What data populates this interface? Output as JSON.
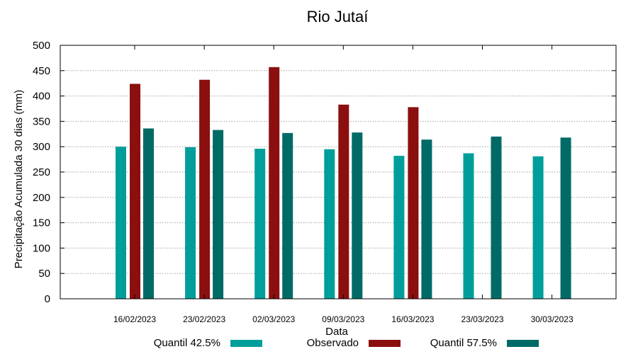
{
  "chart_data": {
    "type": "bar",
    "title": "Rio Jutaí",
    "xlabel": "Data",
    "ylabel": "Precipitação Acumulada 30 dias (mm)",
    "ylim": [
      0,
      500
    ],
    "yticks": [
      0,
      50,
      100,
      150,
      200,
      250,
      300,
      350,
      400,
      450,
      500
    ],
    "grid": true,
    "legend_position": "bottom",
    "categories": [
      "16/02/2023",
      "23/02/2023",
      "02/03/2023",
      "09/03/2023",
      "16/03/2023",
      "23/03/2023",
      "30/03/2023"
    ],
    "series": [
      {
        "name": "Quantil 42.5%",
        "color": "#009e9a",
        "values": [
          300,
          299,
          296,
          295,
          282,
          287,
          281
        ]
      },
      {
        "name": "Observado",
        "color": "#8b0f0f",
        "values": [
          424,
          432,
          457,
          383,
          378,
          null,
          null
        ]
      },
      {
        "name": "Quantil 57.5%",
        "color": "#006b66",
        "values": [
          336,
          333,
          327,
          328,
          314,
          320,
          318
        ]
      }
    ]
  }
}
